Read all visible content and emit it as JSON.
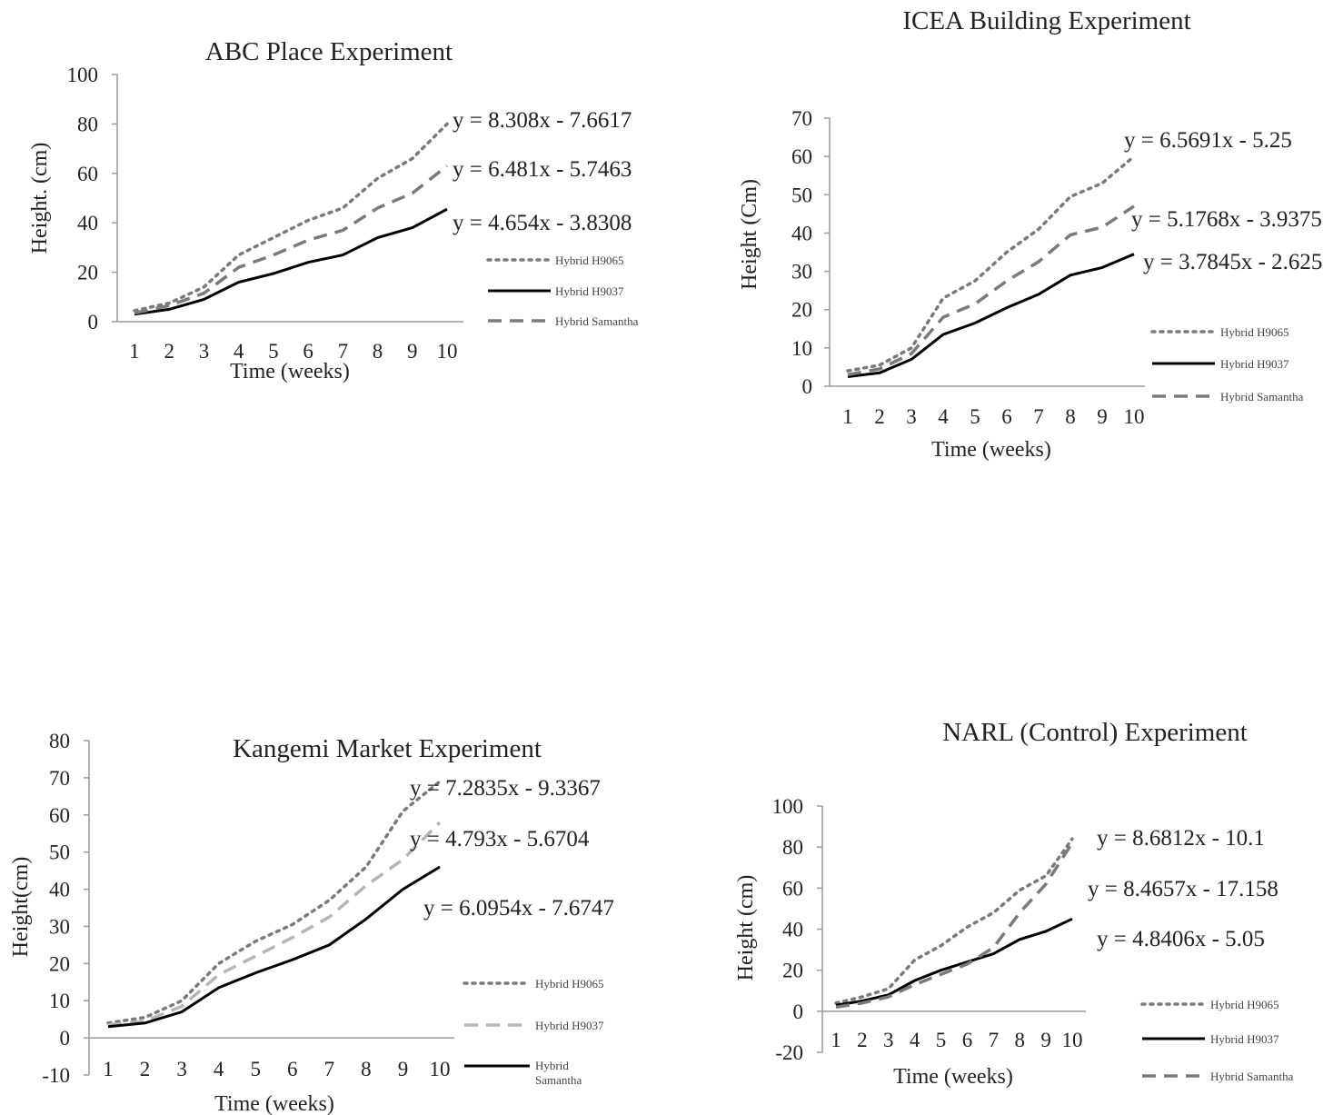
{
  "chart_data": [
    {
      "type": "line",
      "title": "ABC Place Experiment",
      "xlabel": "Time (weeks)",
      "ylabel": "Height. (cm)",
      "x": [
        1,
        2,
        3,
        4,
        5,
        6,
        7,
        8,
        9,
        10
      ],
      "ylim": [
        0,
        100
      ],
      "yticks": [
        0,
        20,
        40,
        60,
        80,
        100
      ],
      "grid": false,
      "legend_position": "right",
      "series": [
        {
          "name": "Hybrid H9065",
          "style": "dotted",
          "color": "#7a7a7a",
          "values": [
            4.5,
            7.5,
            14,
            27,
            34,
            41,
            46,
            58,
            66,
            80
          ],
          "equation": "y = 8.308x - 7.6617"
        },
        {
          "name": "Hybrid H9037",
          "style": "solid",
          "color": "#000000",
          "values": [
            3,
            5,
            9,
            16,
            19.5,
            24,
            27,
            34,
            38,
            45.5
          ],
          "equation": "y = 4.654x - 3.8308"
        },
        {
          "name": "Hybrid Samantha",
          "style": "dashed",
          "color": "#7a7a7a",
          "values": [
            3.5,
            6.5,
            11.5,
            22,
            27,
            33,
            37,
            46,
            52,
            63
          ],
          "equation": "y = 6.481x - 5.7463"
        }
      ]
    },
    {
      "type": "line",
      "title": "ICEA Building  Experiment",
      "xlabel": "Time (weeks)",
      "ylabel": "Height (Cm)",
      "x": [
        1,
        2,
        3,
        4,
        5,
        6,
        7,
        8,
        9,
        10
      ],
      "ylim": [
        0,
        70
      ],
      "yticks": [
        0,
        10,
        20,
        30,
        40,
        50,
        60,
        70
      ],
      "grid": false,
      "legend_position": "right",
      "series": [
        {
          "name": "Hybrid H9065",
          "style": "dotted",
          "color": "#7a7a7a",
          "values": [
            4,
            5.5,
            10,
            23,
            27.5,
            35,
            41,
            49.5,
            53,
            60
          ],
          "equation": "y = 6.5691x - 5.25"
        },
        {
          "name": "Hybrid H9037",
          "style": "solid",
          "color": "#000000",
          "values": [
            2.5,
            3.5,
            7,
            13.5,
            16.5,
            20.5,
            24,
            29,
            31,
            34.5
          ],
          "equation": "y = 3.7845x - 2.625"
        },
        {
          "name": "Hybrid Samantha",
          "style": "dashed",
          "color": "#7a7a7a",
          "values": [
            3,
            4.5,
            8.5,
            18,
            21.5,
            27.5,
            32.5,
            39.5,
            41.5,
            47
          ],
          "equation": "y = 5.1768x - 3.9375"
        }
      ]
    },
    {
      "type": "line",
      "title": "Kangemi Market Experiment",
      "xlabel": "Time (weeks)",
      "ylabel": "Height(cm)",
      "x": [
        1,
        2,
        3,
        4,
        5,
        6,
        7,
        8,
        9,
        10
      ],
      "ylim": [
        -10,
        80
      ],
      "yticks": [
        -10,
        0,
        10,
        20,
        30,
        40,
        50,
        60,
        70,
        80
      ],
      "grid": false,
      "legend_position": "right",
      "series": [
        {
          "name": "Hybrid H9065",
          "style": "dotted",
          "color": "#7a7a7a",
          "values": [
            4,
            5.5,
            10,
            20,
            26,
            30.5,
            37,
            46,
            61,
            69
          ],
          "equation": "y = 7.2835x - 9.3367"
        },
        {
          "name": "Hybrid H9037",
          "style": "dashed",
          "color": "#b5b5b5",
          "values": [
            3.5,
            4.5,
            8.5,
            17,
            22,
            27,
            32.5,
            41,
            48,
            58
          ],
          "equation": "y = 6.0954x - 7.6747"
        },
        {
          "name": "Hybrid Samantha",
          "style": "solid",
          "color": "#000000",
          "values": [
            3,
            4,
            7,
            13.5,
            17.5,
            21,
            25,
            32,
            40,
            46
          ],
          "equation": "y = 4.793x - 5.6704"
        }
      ]
    },
    {
      "type": "line",
      "title": "NARL (Control) Experiment",
      "xlabel": "Time (weeks)",
      "ylabel": "Height (cm)",
      "x": [
        1,
        2,
        3,
        4,
        5,
        6,
        7,
        8,
        9,
        10
      ],
      "ylim": [
        -20,
        100
      ],
      "yticks": [
        -20,
        0,
        20,
        40,
        60,
        80,
        100
      ],
      "grid": false,
      "legend_position": "right",
      "series": [
        {
          "name": "Hybrid H9065",
          "style": "dotted",
          "color": "#7a7a7a",
          "values": [
            4,
            7,
            11,
            25,
            32,
            41,
            48,
            59,
            66,
            84
          ],
          "equation": "y = 8.6812x - 10.1"
        },
        {
          "name": "Hybrid H9037",
          "style": "solid",
          "color": "#000000",
          "values": [
            3,
            5,
            8,
            15,
            20,
            24,
            28,
            35,
            39,
            45
          ],
          "equation": "y = 4.8406x - 5.05"
        },
        {
          "name": "Hybrid Samantha",
          "style": "dashed",
          "color": "#7a7a7a",
          "values": [
            2,
            4,
            7,
            13,
            18,
            23,
            31,
            48,
            62,
            82
          ],
          "equation": "y = 8.4657x - 17.158"
        }
      ]
    }
  ]
}
